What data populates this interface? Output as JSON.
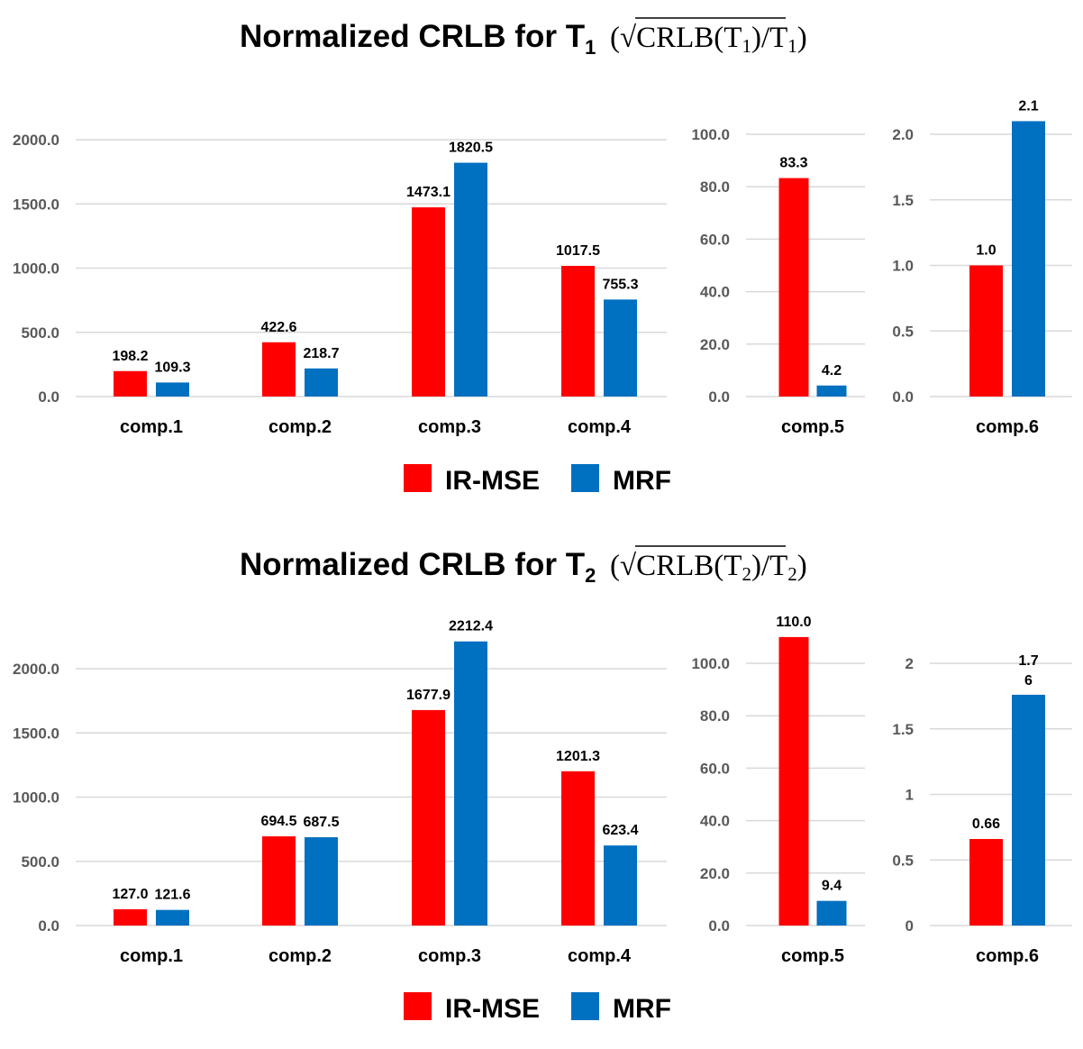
{
  "chart_data": [
    {
      "type": "bar",
      "title": {
        "prefix": "Normalized CRLB for T",
        "sub": "1",
        "math_open": "(√",
        "math_crlb": "CRLB(T",
        "math_close_inner": ")",
        "math_div": "/T",
        "math_close": ")"
      },
      "legend": [
        "IR-MSE",
        "MRF"
      ],
      "colors": {
        "IR-MSE": "#ff0000",
        "MRF": "#0070c0"
      },
      "grid": true,
      "legend_placement": "bottom",
      "panels": [
        {
          "categories": [
            "comp.1",
            "comp.2",
            "comp.3",
            "comp.4"
          ],
          "ylim": [
            0,
            2000
          ],
          "yticks": [
            "0.0",
            "500.0",
            "1000.0",
            "1500.0",
            "2000.0"
          ],
          "ytick_values": [
            0,
            500,
            1000,
            1500,
            2000
          ],
          "series": [
            {
              "name": "IR-MSE",
              "values": [
                198.2,
                422.6,
                1473.1,
                1017.5
              ],
              "labels": [
                "198.2",
                "422.6",
                "1473.1",
                "1017.5"
              ]
            },
            {
              "name": "MRF",
              "values": [
                109.3,
                218.7,
                1820.5,
                755.3
              ],
              "labels": [
                "109.3",
                "218.7",
                "1820.5",
                "755.3"
              ]
            }
          ]
        },
        {
          "categories": [
            "comp.5"
          ],
          "ylim": [
            0,
            100
          ],
          "yticks": [
            "0.0",
            "20.0",
            "40.0",
            "60.0",
            "80.0",
            "100.0"
          ],
          "ytick_values": [
            0,
            20,
            40,
            60,
            80,
            100
          ],
          "series": [
            {
              "name": "IR-MSE",
              "values": [
                83.3
              ],
              "labels": [
                "83.3"
              ]
            },
            {
              "name": "MRF",
              "values": [
                4.2
              ],
              "labels": [
                "4.2"
              ]
            }
          ]
        },
        {
          "categories": [
            "comp.6"
          ],
          "ylim": [
            0,
            2.0
          ],
          "yticks": [
            "0.0",
            "0.5",
            "1.0",
            "1.5",
            "2.0"
          ],
          "ytick_values": [
            0,
            0.5,
            1.0,
            1.5,
            2.0
          ],
          "series": [
            {
              "name": "IR-MSE",
              "values": [
                1.0
              ],
              "labels": [
                "1.0"
              ]
            },
            {
              "name": "MRF",
              "values": [
                2.1
              ],
              "labels": [
                "2.1"
              ]
            }
          ]
        }
      ]
    },
    {
      "type": "bar",
      "title": {
        "prefix": "Normalized CRLB for T",
        "sub": "2",
        "math_open": "(√",
        "math_crlb": "CRLB(T",
        "math_close_inner": ")",
        "math_div": "/T",
        "math_close": ")"
      },
      "legend": [
        "IR-MSE",
        "MRF"
      ],
      "colors": {
        "IR-MSE": "#ff0000",
        "MRF": "#0070c0"
      },
      "grid": true,
      "legend_placement": "bottom",
      "panels": [
        {
          "categories": [
            "comp.1",
            "comp.2",
            "comp.3",
            "comp.4"
          ],
          "ylim": [
            0,
            2000
          ],
          "yticks": [
            "0.0",
            "500.0",
            "1000.0",
            "1500.0",
            "2000.0"
          ],
          "ytick_values": [
            0,
            500,
            1000,
            1500,
            2000
          ],
          "series": [
            {
              "name": "IR-MSE",
              "values": [
                127.0,
                694.5,
                1677.9,
                1201.3
              ],
              "labels": [
                "127.0",
                "694.5",
                "1677.9",
                "1201.3"
              ]
            },
            {
              "name": "MRF",
              "values": [
                121.6,
                687.5,
                2212.4,
                623.4
              ],
              "labels": [
                "121.6",
                "687.5",
                "2212.4",
                "623.4"
              ]
            }
          ]
        },
        {
          "categories": [
            "comp.5"
          ],
          "ylim": [
            0,
            100
          ],
          "yticks": [
            "0.0",
            "20.0",
            "40.0",
            "60.0",
            "80.0",
            "100.0"
          ],
          "ytick_values": [
            0,
            20,
            40,
            60,
            80,
            100
          ],
          "series": [
            {
              "name": "IR-MSE",
              "values": [
                110.0
              ],
              "labels": [
                "110.0"
              ]
            },
            {
              "name": "MRF",
              "values": [
                9.4
              ],
              "labels": [
                "9.4"
              ]
            }
          ]
        },
        {
          "categories": [
            "comp.6"
          ],
          "ylim": [
            0,
            2
          ],
          "yticks": [
            "0",
            "0.5",
            "1",
            "1.5",
            "2"
          ],
          "ytick_values": [
            0,
            0.5,
            1,
            1.5,
            2
          ],
          "series": [
            {
              "name": "IR-MSE",
              "values": [
                0.66
              ],
              "labels": [
                "0.66"
              ]
            },
            {
              "name": "MRF",
              "values": [
                1.76
              ],
              "labels": [
                "1.7\n6"
              ]
            }
          ]
        }
      ]
    }
  ]
}
